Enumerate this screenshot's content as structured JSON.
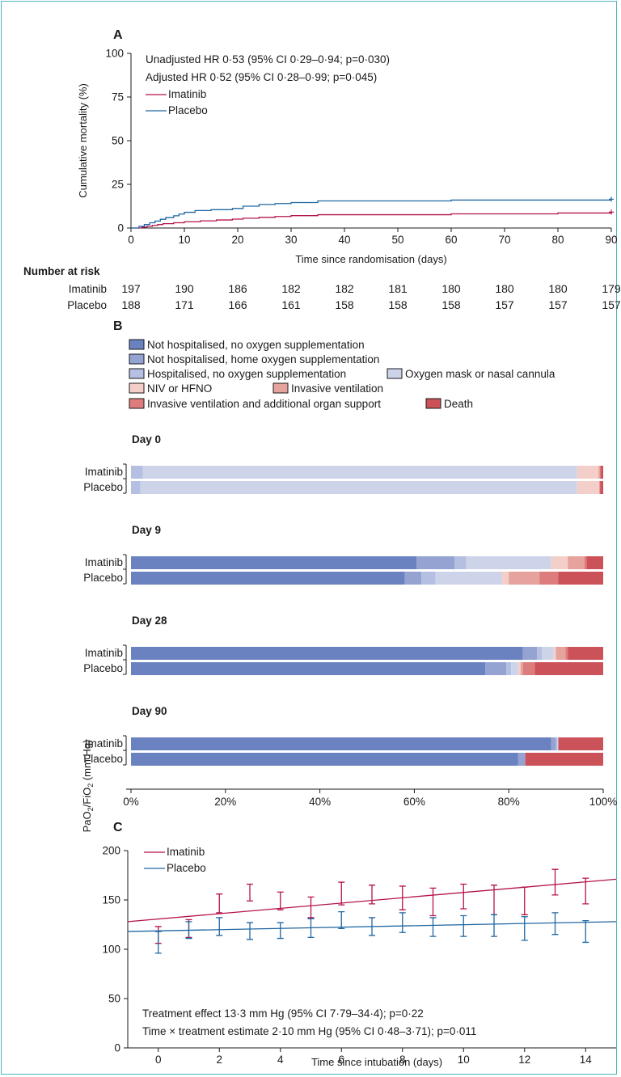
{
  "colors": {
    "imatinib": "#b5134b",
    "placebo": "#1f67a3",
    "axis": "#1a1a1a",
    "border": "#4fb3bf",
    "categories": [
      "#6b82c1",
      "#94a3d2",
      "#b5bfe2",
      "#cdd4ea",
      "#f4cfc9",
      "#e6a29c",
      "#dc7c7c",
      "#cc5259"
    ]
  },
  "chart_data": [
    {
      "panel": "A",
      "type": "line",
      "ylabel": "Cumulative mortality (%)",
      "xlabel": "Time since randomisation (days)",
      "xlim": [
        0,
        90
      ],
      "ylim": [
        0,
        100
      ],
      "xticks": [
        "0",
        "10",
        "20",
        "30",
        "40",
        "50",
        "60",
        "70",
        "80",
        "90"
      ],
      "yticks": [
        "0",
        "25",
        "50",
        "75",
        "100"
      ],
      "annotations": [
        "Unadjusted HR 0·53 (95% CI 0·29–0·94; p=0·030)",
        "Adjusted HR 0·52 (95% CI 0·28–0·99; p=0·045)"
      ],
      "series": [
        {
          "name": "Imatinib",
          "x": [
            0,
            2,
            3,
            4,
            5,
            6,
            8,
            10,
            13,
            16,
            19,
            21,
            24,
            27,
            30,
            35,
            60,
            80,
            90
          ],
          "y": [
            0,
            0.5,
            1,
            1.5,
            2,
            2.5,
            3,
            3.6,
            4.1,
            4.6,
            5.1,
            5.6,
            6.1,
            6.6,
            7.1,
            7.6,
            8.1,
            8.6,
            9.1
          ]
        },
        {
          "name": "Placebo",
          "x": [
            0,
            1.5,
            2.5,
            3.5,
            4.5,
            5.5,
            6.5,
            8,
            9,
            10,
            12,
            15,
            19,
            21,
            24,
            27,
            30,
            35,
            60,
            90
          ],
          "y": [
            0,
            1,
            2,
            3,
            4,
            5,
            6,
            7,
            8,
            9,
            10,
            10.5,
            11.2,
            12.5,
            13.5,
            14,
            14.6,
            15.5,
            16,
            16.5
          ]
        }
      ],
      "risk_table": {
        "title": "Number at risk",
        "rows": [
          {
            "label": "Imatinib",
            "values": [
              "197",
              "190",
              "186",
              "182",
              "182",
              "181",
              "180",
              "180",
              "180",
              "179"
            ]
          },
          {
            "label": "Placebo",
            "values": [
              "188",
              "171",
              "166",
              "161",
              "158",
              "158",
              "158",
              "157",
              "157",
              "157"
            ]
          }
        ]
      }
    },
    {
      "panel": "B",
      "type": "bar",
      "orientation": "horizontal-stacked",
      "legend": [
        "Not hospitalised, no oxygen supplementation",
        "Not hospitalised, home oxygen supplementation",
        "Hospitalised, no oxygen supplementation",
        "Oxygen mask or nasal cannula",
        "NIV or HFNO",
        "Invasive ventilation",
        "Invasive ventilation and additional organ support",
        "Death"
      ],
      "xticks": [
        "0%",
        "20%",
        "40%",
        "60%",
        "80%",
        "100%"
      ],
      "groups": [
        {
          "title": "Day 0",
          "rows": [
            {
              "label": "Imatinib",
              "values": [
                0,
                0,
                2.5,
                92,
                4.5,
                0.3,
                0.2,
                0.5
              ]
            },
            {
              "label": "Placebo",
              "values": [
                0,
                0,
                2,
                92.5,
                4.7,
                0,
                0.2,
                0.6
              ]
            }
          ]
        },
        {
          "title": "Day 9",
          "rows": [
            {
              "label": "Imatinib",
              "values": [
                60.5,
                8,
                2.5,
                18,
                3.5,
                3.5,
                0.5,
                3.5
              ]
            },
            {
              "label": "Placebo",
              "values": [
                58,
                3.5,
                3,
                14,
                1.5,
                6.5,
                4,
                9.5
              ]
            }
          ]
        },
        {
          "title": "Day 28",
          "rows": [
            {
              "label": "Imatinib",
              "values": [
                83,
                3,
                1,
                2.5,
                0.5,
                2,
                0.5,
                7.5
              ]
            },
            {
              "label": "Placebo",
              "values": [
                75,
                4.5,
                1,
                1.5,
                0.5,
                0.5,
                2.5,
                14.5
              ]
            }
          ]
        },
        {
          "title": "Day 90",
          "rows": [
            {
              "label": "Imatinib",
              "values": [
                89,
                1,
                0.3,
                0.2,
                0,
                0,
                0,
                9.5
              ]
            },
            {
              "label": "Placebo",
              "values": [
                82,
                1.5,
                0,
                0,
                0,
                0,
                0,
                16.5
              ]
            }
          ]
        }
      ]
    },
    {
      "panel": "C",
      "type": "line",
      "ylabel": "PaO2/FiO2 (mm Hg)",
      "xlabel": "Time since intubation (days)",
      "xlim": [
        -1,
        15
      ],
      "ylim": [
        0,
        200
      ],
      "xticks": [
        "0",
        "2",
        "4",
        "6",
        "8",
        "10",
        "12",
        "14"
      ],
      "yticks": [
        "0",
        "50",
        "100",
        "150",
        "200"
      ],
      "annotations": [
        "Treatment effect 13·3 mm Hg (95% CI 7·79–34·4); p=0·22",
        "Time × treatment estimate 2·10 mm Hg (95% CI 0·48–3·71); p=0·011"
      ],
      "series": [
        {
          "name": "Imatinib",
          "trend": [
            [
              -1,
              128
            ],
            [
              15,
              171
            ]
          ],
          "x": [
            0,
            1,
            2,
            3,
            4,
            5,
            6,
            7,
            8,
            9,
            10,
            11,
            12,
            13,
            14
          ],
          "upper": [
            123,
            130,
            156,
            166,
            158,
            153,
            168,
            165,
            164,
            162,
            166,
            165,
            163,
            181,
            172
          ],
          "lower": [
            106,
            112,
            137,
            149,
            140,
            132,
            145,
            146,
            140,
            134,
            141,
            135,
            135,
            155,
            146
          ]
        },
        {
          "name": "Placebo",
          "trend": [
            [
              -1,
              118
            ],
            [
              15,
              128
            ]
          ],
          "x": [
            0,
            1,
            2,
            3,
            4,
            5,
            6,
            7,
            8,
            9,
            10,
            11,
            12,
            13,
            14
          ],
          "upper": [
            118,
            128,
            132,
            127,
            127,
            131,
            138,
            132,
            137,
            132,
            134,
            135,
            133,
            137,
            129
          ],
          "lower": [
            96,
            111,
            114,
            110,
            111,
            112,
            121,
            114,
            117,
            113,
            113,
            113,
            109,
            115,
            107
          ]
        }
      ]
    }
  ]
}
